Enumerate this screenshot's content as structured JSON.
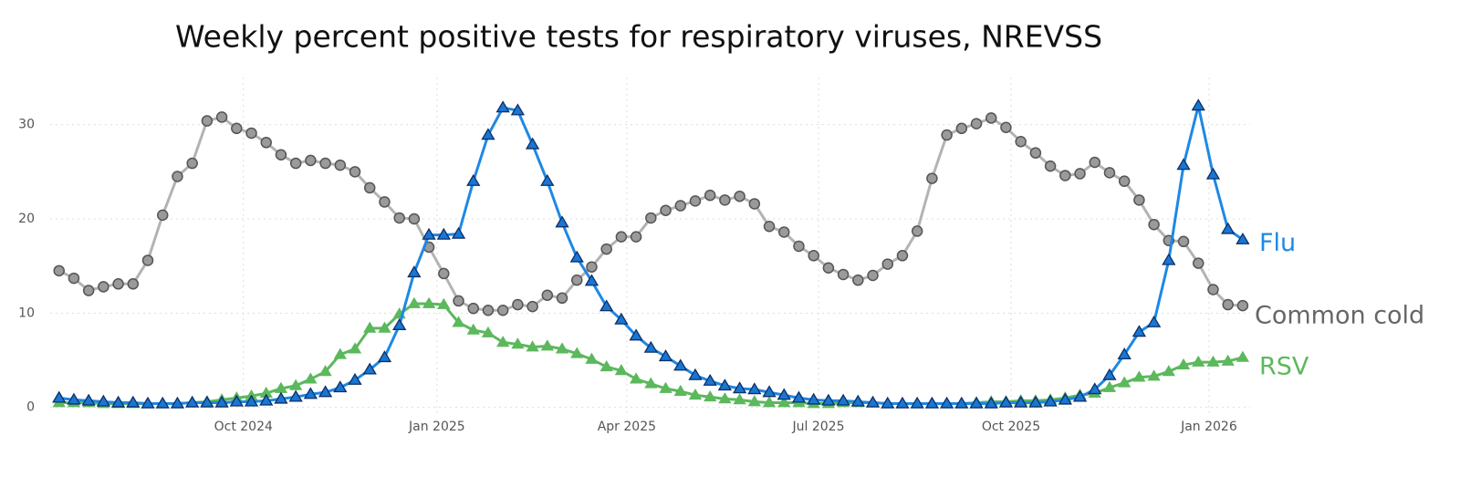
{
  "chart_data": {
    "type": "line",
    "title": "Weekly percent positive tests for respiratory viruses, NREVSS",
    "x": [
      0,
      1,
      2,
      3,
      4,
      5,
      6,
      7,
      8,
      9,
      10,
      11,
      12,
      13,
      14,
      15,
      16,
      17,
      18,
      19,
      20,
      21,
      22,
      23,
      24,
      25,
      26,
      27,
      28,
      29,
      30,
      31,
      32,
      33,
      34,
      35,
      36,
      37,
      38,
      39,
      40,
      41,
      42,
      43,
      44,
      45,
      46,
      47,
      48,
      49,
      50,
      51,
      52,
      53,
      54,
      55,
      56,
      57,
      58,
      59,
      60,
      61,
      62,
      63,
      64,
      65,
      66,
      67,
      68,
      69,
      70,
      71,
      72,
      73,
      74,
      75,
      76,
      77,
      78,
      79,
      80
    ],
    "xlim": [
      -0.6,
      80.5
    ],
    "xticks": [
      {
        "value": 12.46,
        "label": "Oct 2024"
      },
      {
        "value": 25.54,
        "label": "Jan 2025"
      },
      {
        "value": 38.37,
        "label": "Apr 2025"
      },
      {
        "value": 51.33,
        "label": "Jul 2025"
      },
      {
        "value": 64.34,
        "label": "Oct 2025"
      },
      {
        "value": 77.72,
        "label": "Jan 2026"
      }
    ],
    "ylim": [
      -1,
      35
    ],
    "yticks": [
      0,
      10,
      20,
      30
    ],
    "grid": true,
    "series": [
      {
        "name": "Common cold",
        "color": "#b3b3b3",
        "marker": "circle",
        "marker_color": "#9a9a9a",
        "label_color": "#666666",
        "values": [
          14.5,
          13.7,
          12.4,
          12.8,
          13.1,
          13.1,
          15.6,
          20.4,
          24.5,
          25.9,
          30.4,
          30.8,
          29.6,
          29.1,
          28.1,
          26.8,
          25.9,
          26.2,
          25.9,
          25.7,
          25.0,
          23.3,
          21.8,
          20.1,
          20.0,
          17.0,
          14.2,
          11.3,
          10.5,
          10.3,
          10.3,
          10.9,
          10.7,
          11.9,
          11.6,
          13.5,
          14.9,
          16.8,
          18.1,
          18.1,
          20.1,
          20.9,
          21.4,
          21.9,
          22.5,
          22.0,
          22.4,
          21.6,
          19.2,
          18.6,
          17.1,
          16.1,
          14.8,
          14.1,
          13.5,
          14.0,
          15.2,
          16.1,
          18.7,
          24.3,
          28.9,
          29.6,
          30.1,
          30.7,
          29.7,
          28.2,
          27.0,
          25.6,
          24.6,
          24.8,
          26.0,
          24.9,
          24.0,
          22.0,
          19.4,
          17.7,
          17.6,
          15.3,
          12.5,
          10.9,
          10.8
        ]
      },
      {
        "name": "RSV",
        "color": "#5cb85c",
        "marker": "triangle",
        "marker_color": "#5cb85c",
        "label_color": "#5cb85c",
        "values": [
          0.5,
          0.5,
          0.5,
          0.4,
          0.4,
          0.4,
          0.4,
          0.4,
          0.4,
          0.5,
          0.6,
          0.8,
          1.0,
          1.2,
          1.5,
          2.0,
          2.3,
          3.0,
          3.8,
          5.6,
          6.2,
          8.4,
          8.4,
          9.9,
          11.0,
          11.0,
          10.9,
          9.0,
          8.2,
          7.9,
          6.9,
          6.7,
          6.4,
          6.5,
          6.2,
          5.7,
          5.1,
          4.3,
          3.9,
          3.0,
          2.5,
          2.0,
          1.7,
          1.3,
          1.1,
          0.9,
          0.8,
          0.6,
          0.5,
          0.5,
          0.5,
          0.4,
          0.4,
          0.5,
          0.5,
          0.5,
          0.4,
          0.4,
          0.4,
          0.4,
          0.4,
          0.4,
          0.5,
          0.6,
          0.6,
          0.7,
          0.7,
          0.8,
          1.0,
          1.3,
          1.5,
          2.1,
          2.6,
          3.2,
          3.3,
          3.8,
          4.5,
          4.8,
          4.8,
          4.9,
          5.3
        ]
      },
      {
        "name": "Flu",
        "color": "#1e88e5",
        "marker": "triangle",
        "marker_color": "#1976d2",
        "label_color": "#1e88e5",
        "values": [
          1.0,
          0.8,
          0.7,
          0.6,
          0.5,
          0.5,
          0.4,
          0.4,
          0.4,
          0.5,
          0.5,
          0.5,
          0.6,
          0.6,
          0.7,
          0.9,
          1.1,
          1.4,
          1.6,
          2.1,
          2.9,
          4.0,
          5.3,
          8.7,
          14.3,
          18.3,
          18.3,
          18.4,
          24.0,
          28.9,
          31.8,
          31.5,
          27.9,
          24.0,
          19.6,
          15.9,
          13.4,
          10.7,
          9.3,
          7.6,
          6.3,
          5.4,
          4.4,
          3.4,
          2.8,
          2.3,
          2.0,
          1.9,
          1.6,
          1.3,
          1.0,
          0.8,
          0.7,
          0.7,
          0.6,
          0.5,
          0.4,
          0.4,
          0.4,
          0.4,
          0.4,
          0.4,
          0.4,
          0.4,
          0.5,
          0.5,
          0.5,
          0.6,
          0.8,
          1.1,
          1.9,
          3.4,
          5.6,
          8.0,
          9.0,
          15.6,
          25.7,
          32.0,
          24.7,
          18.9,
          17.8
        ]
      }
    ]
  }
}
